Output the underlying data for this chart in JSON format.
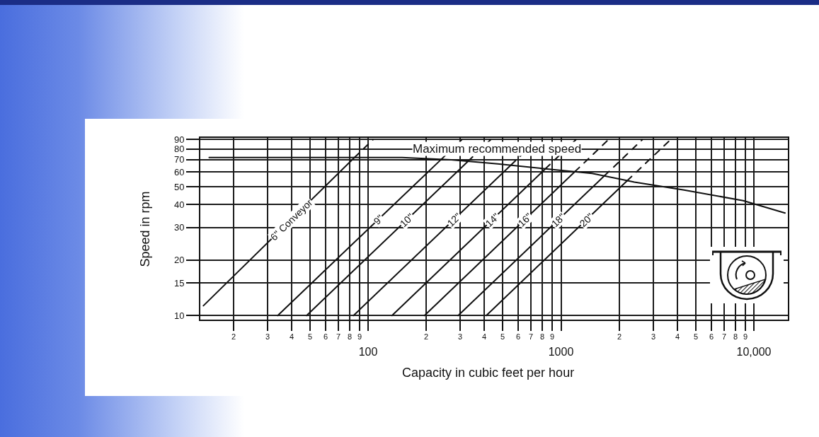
{
  "chart_data": {
    "type": "line",
    "xlabel": "Capacity in cubic feet per hour",
    "ylabel": "Speed in rpm",
    "log": "xy",
    "xlim": [
      13.5,
      15000
    ],
    "ylim": [
      9.5,
      92
    ],
    "xticks": [
      {
        "value": 20,
        "label": null
      },
      {
        "value": 30,
        "label": null
      },
      {
        "value": 40,
        "label": null
      },
      {
        "value": 50,
        "label": null
      },
      {
        "value": 60,
        "label": null
      },
      {
        "value": 70,
        "label": null
      },
      {
        "value": 80,
        "label": null
      },
      {
        "value": 90,
        "label": null
      },
      100,
      {
        "value": 200,
        "label": null
      },
      {
        "value": 300,
        "label": null
      },
      {
        "value": 400,
        "label": null
      },
      {
        "value": 500,
        "label": null
      },
      {
        "value": 600,
        "label": null
      },
      {
        "value": 700,
        "label": null
      },
      {
        "value": 800,
        "label": null
      },
      {
        "value": 900,
        "label": null
      },
      1000,
      {
        "value": 2000,
        "label": null
      },
      {
        "value": 3000,
        "label": null
      },
      {
        "value": 4000,
        "label": null
      },
      {
        "value": 5000,
        "label": null
      },
      {
        "value": 6000,
        "label": null
      },
      {
        "value": 7000,
        "label": null
      },
      {
        "value": 8000,
        "label": null
      },
      {
        "value": 9000,
        "label": null
      },
      {
        "value": 10000,
        "label": "10,000"
      }
    ],
    "annotations": [
      "2",
      "3",
      "4",
      "5",
      "6",
      "7",
      "8",
      "9",
      "2",
      "3",
      "4",
      "5",
      "6",
      "7",
      "8",
      "9",
      "2",
      "3",
      "4",
      "5",
      "6",
      "7",
      "8",
      "9"
    ],
    "yticks": [
      10,
      15,
      20,
      30,
      40,
      50,
      60,
      70,
      80,
      90
    ],
    "grid": true,
    "legend": false,
    "marker": "none",
    "line_style": "solid",
    "series": [
      {
        "name": "Maximum recommended speed",
        "color": "#111111",
        "x": [
          15,
          150,
          270,
          470,
          830,
          1450,
          2400,
          4350,
          8800,
          14500
        ],
        "values": [
          72,
          72,
          70,
          66.5,
          62.5,
          59,
          53,
          48,
          42,
          36
        ]
      },
      {
        "name": "6\" Conveyor",
        "color": "#111111",
        "x": [
          14,
          85
        ],
        "values": [
          11.3,
          72
        ]
      },
      {
        "name": "9\"",
        "color": "#111111",
        "x": [
          34,
          240
        ],
        "values": [
          10,
          70.5
        ]
      },
      {
        "name": "10\"",
        "color": "#111111",
        "x": [
          48,
          330
        ],
        "values": [
          10,
          68.7
        ]
      },
      {
        "name": "12\"",
        "color": "#111111",
        "x": [
          84,
          550
        ],
        "values": [
          10,
          65.5
        ]
      },
      {
        "name": "14\"",
        "color": "#111111",
        "x": [
          133,
          830
        ],
        "values": [
          10,
          62.5
        ]
      },
      {
        "name": "16\"",
        "color": "#111111",
        "x": [
          196,
          1180
        ],
        "values": [
          10,
          60.3
        ]
      },
      {
        "name": "18\"",
        "color": "#111111",
        "x": [
          293,
          1680
        ],
        "values": [
          10,
          57.3
        ]
      },
      {
        "name": "20\"",
        "color": "#111111",
        "x": [
          410,
          2200
        ],
        "values": [
          10,
          53.8
        ]
      },
      {
        "color": "#111111",
        "line_style": "dashed",
        "x": [
          85,
          106
        ],
        "values": [
          72,
          90
        ]
      },
      {
        "color": "#111111",
        "line_style": "dashed",
        "x": [
          240,
          306
        ],
        "values": [
          70.5,
          90
        ]
      },
      {
        "color": "#111111",
        "line_style": "dashed",
        "x": [
          330,
          432
        ],
        "values": [
          68.7,
          90
        ]
      },
      {
        "color": "#111111",
        "line_style": "dashed",
        "x": [
          550,
          756
        ],
        "values": [
          65.5,
          90
        ]
      },
      {
        "color": "#111111",
        "line_style": "dashed",
        "x": [
          830,
          1195
        ],
        "values": [
          62.5,
          90
        ]
      },
      {
        "color": "#111111",
        "line_style": "dashed",
        "x": [
          1180,
          1761
        ],
        "values": [
          60.3,
          90
        ]
      },
      {
        "color": "#111111",
        "line_style": "dashed",
        "x": [
          1680,
          2640
        ],
        "values": [
          57.3,
          90
        ]
      },
      {
        "color": "#111111",
        "line_style": "dashed",
        "x": [
          2200,
          3700
        ],
        "values": [
          53.8,
          90
        ]
      }
    ]
  }
}
